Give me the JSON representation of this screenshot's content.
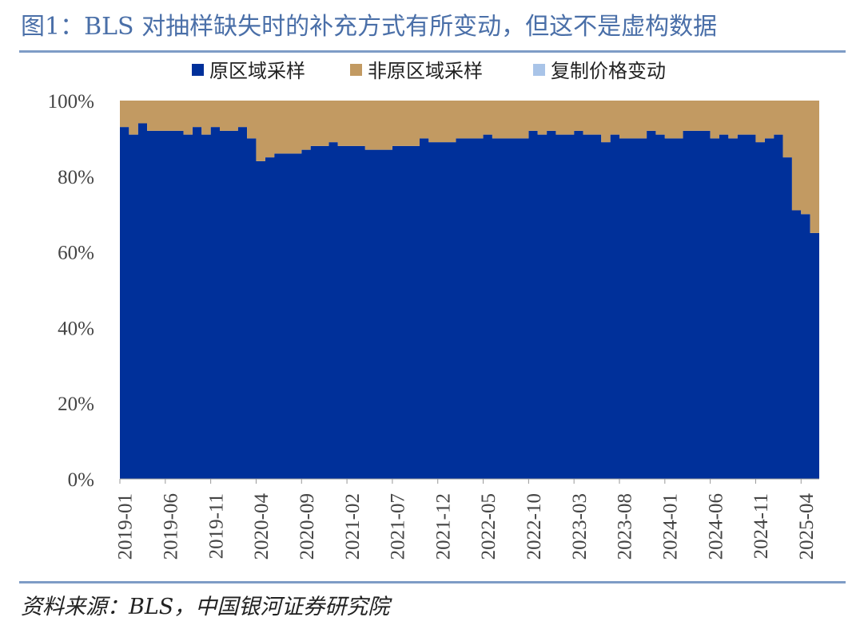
{
  "header": {
    "title": "图1：BLS 对抽样缺失时的补充方式有所变动，但这不是虚构数据"
  },
  "footer": {
    "source": "资料来源：BLS，中国银河证券研究院"
  },
  "chart_data": {
    "type": "area",
    "title": "",
    "xlabel": "",
    "ylabel": "",
    "ylim": [
      0,
      100
    ],
    "yticks": [
      "0%",
      "20%",
      "40%",
      "60%",
      "80%",
      "100%"
    ],
    "xtick_labels": [
      "2019-01",
      "2019-06",
      "2019-11",
      "2020-04",
      "2020-09",
      "2021-02",
      "2021-07",
      "2021-12",
      "2022-05",
      "2022-10",
      "2023-03",
      "2023-08",
      "2024-01",
      "2024-06",
      "2024-11",
      "2025-04"
    ],
    "legend_position": "top",
    "stacked": true,
    "start_month": "2019-01",
    "series": [
      {
        "name": "原区域采样",
        "color": "#00309a",
        "values": [
          93,
          91,
          94,
          92,
          92,
          92,
          92,
          91,
          93,
          91,
          93,
          92,
          92,
          93,
          90,
          84,
          85,
          86,
          86,
          86,
          87,
          88,
          88,
          89,
          88,
          88,
          88,
          87,
          87,
          87,
          88,
          88,
          88,
          90,
          89,
          89,
          89,
          90,
          90,
          90,
          91,
          90,
          90,
          90,
          90,
          92,
          91,
          92,
          91,
          91,
          92,
          91,
          91,
          89,
          91,
          90,
          90,
          90,
          92,
          91,
          90,
          90,
          92,
          92,
          92,
          90,
          91,
          90,
          91,
          91,
          89,
          90,
          91,
          85,
          71,
          70,
          65
        ]
      },
      {
        "name": "非原区域采样",
        "color": "#c29a62",
        "values": [
          7,
          9,
          6,
          8,
          8,
          8,
          8,
          9,
          7,
          9,
          7,
          8,
          8,
          7,
          10,
          16,
          15,
          14,
          14,
          14,
          13,
          12,
          12,
          11,
          12,
          12,
          12,
          13,
          13,
          13,
          12,
          12,
          12,
          10,
          11,
          11,
          11,
          10,
          10,
          10,
          9,
          10,
          10,
          10,
          10,
          8,
          9,
          8,
          9,
          9,
          8,
          9,
          9,
          11,
          9,
          10,
          10,
          10,
          8,
          9,
          10,
          10,
          8,
          8,
          8,
          10,
          9,
          10,
          9,
          9,
          11,
          10,
          9,
          15,
          29,
          30,
          35
        ]
      },
      {
        "name": "复制价格变动",
        "color": "#a9c4e8",
        "values": [
          0,
          0,
          0,
          0,
          0,
          0,
          0,
          0,
          0,
          0,
          0,
          0,
          0,
          0,
          0,
          0,
          0,
          0,
          0,
          0,
          0,
          0,
          0,
          0,
          0,
          0,
          0,
          0,
          0,
          0,
          0,
          0,
          0,
          0,
          0,
          0,
          0,
          0,
          0,
          0,
          0,
          0,
          0,
          0,
          0,
          0,
          0,
          0,
          0,
          0,
          0,
          0,
          0,
          0,
          0,
          0,
          0,
          0,
          0,
          0,
          0,
          0,
          0,
          0,
          0,
          0,
          0,
          0,
          0,
          0,
          0,
          0,
          0,
          0,
          0,
          0,
          0
        ]
      }
    ]
  }
}
